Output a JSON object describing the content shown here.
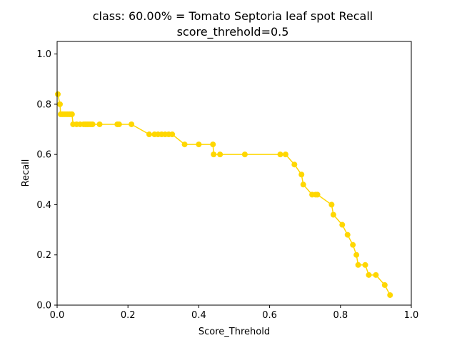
{
  "chart_data": {
    "type": "line",
    "title": "class: 60.00% = Tomato Septoria leaf spot Recall",
    "subtitle": "score_threhold=0.5",
    "xlabel": "Score_Threhold",
    "ylabel": "Recall",
    "xlim": [
      0.0,
      1.0
    ],
    "ylim": [
      0.0,
      1.05
    ],
    "xticks": [
      0.0,
      0.2,
      0.4,
      0.6,
      0.8,
      1.0
    ],
    "yticks": [
      0.0,
      0.2,
      0.4,
      0.6,
      0.8,
      1.0
    ],
    "xtick_labels": [
      "0.0",
      "0.2",
      "0.4",
      "0.6",
      "0.8",
      "1.0"
    ],
    "ytick_labels": [
      "0.0",
      "0.2",
      "0.4",
      "0.6",
      "0.8",
      "1.0"
    ],
    "grid": false,
    "series": [
      {
        "name": "Recall",
        "color": "#FFD700",
        "x": [
          0.002,
          0.008,
          0.01,
          0.015,
          0.02,
          0.025,
          0.03,
          0.035,
          0.04,
          0.042,
          0.045,
          0.055,
          0.065,
          0.075,
          0.08,
          0.085,
          0.09,
          0.095,
          0.1,
          0.12,
          0.17,
          0.175,
          0.21,
          0.26,
          0.275,
          0.285,
          0.295,
          0.305,
          0.315,
          0.325,
          0.36,
          0.4,
          0.44,
          0.442,
          0.46,
          0.53,
          0.63,
          0.645,
          0.67,
          0.69,
          0.695,
          0.72,
          0.73,
          0.735,
          0.775,
          0.78,
          0.805,
          0.82,
          0.835,
          0.845,
          0.85,
          0.87,
          0.88,
          0.9,
          0.925,
          0.94
        ],
        "y": [
          0.84,
          0.8,
          0.76,
          0.76,
          0.76,
          0.76,
          0.76,
          0.76,
          0.76,
          0.76,
          0.72,
          0.72,
          0.72,
          0.72,
          0.72,
          0.72,
          0.72,
          0.72,
          0.72,
          0.72,
          0.72,
          0.72,
          0.72,
          0.68,
          0.68,
          0.68,
          0.68,
          0.68,
          0.68,
          0.68,
          0.64,
          0.64,
          0.64,
          0.6,
          0.6,
          0.6,
          0.6,
          0.6,
          0.56,
          0.52,
          0.48,
          0.44,
          0.44,
          0.44,
          0.4,
          0.36,
          0.32,
          0.28,
          0.24,
          0.2,
          0.16,
          0.16,
          0.12,
          0.12,
          0.08,
          0.04
        ]
      }
    ]
  }
}
